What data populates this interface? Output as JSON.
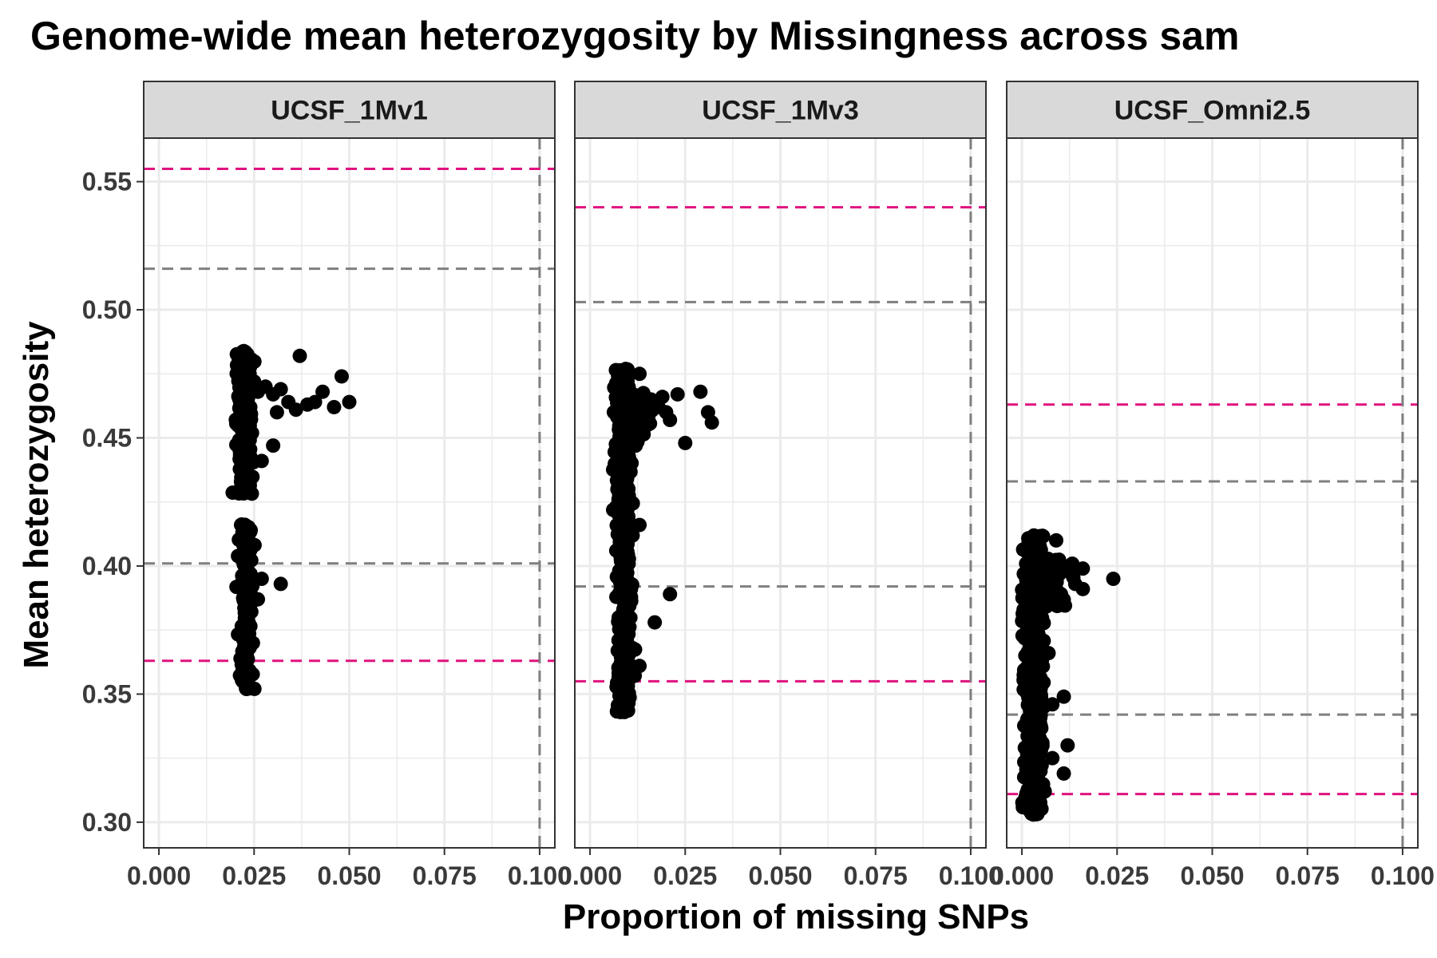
{
  "chart_data": {
    "type": "scatter",
    "title": "Genome-wide mean heterozygosity by Missingness across sam",
    "xlabel": "Proportion of missing SNPs",
    "ylabel": "Mean heterozygosity",
    "xlim": [
      -0.004,
      0.104
    ],
    "ylim": [
      0.29,
      0.567
    ],
    "x_ticks": [
      "0.000",
      "0.025",
      "0.050",
      "0.075",
      "0.100"
    ],
    "x_tick_values": [
      0,
      0.025,
      0.05,
      0.075,
      0.1
    ],
    "y_ticks": [
      "0.30",
      "0.35",
      "0.40",
      "0.45",
      "0.50",
      "0.55"
    ],
    "y_tick_values": [
      0.3,
      0.35,
      0.4,
      0.45,
      0.5,
      0.55
    ],
    "grid": true,
    "colors": {
      "points": "#000000",
      "inner_threshold": "#7f7f7f",
      "outer_threshold": "#e0127f",
      "strip_fill": "#d9d9d9",
      "grid": "#ebebeb"
    },
    "panels": [
      {
        "name": "UCSF_1Mv1",
        "missing_threshold": 0.1,
        "het_inner_thresholds": [
          0.401,
          0.516
        ],
        "het_outer_thresholds": [
          0.363,
          0.555
        ],
        "clusters": [
          {
            "x": 0.0225,
            "x_spread": 0.0015,
            "y_min": 0.428,
            "y_max": 0.484,
            "n": 260
          },
          {
            "x": 0.0228,
            "x_spread": 0.0014,
            "y_min": 0.352,
            "y_max": 0.418,
            "n": 150
          }
        ],
        "points": [
          [
            0.024,
            0.462
          ],
          [
            0.026,
            0.468
          ],
          [
            0.028,
            0.47
          ],
          [
            0.03,
            0.467
          ],
          [
            0.032,
            0.469
          ],
          [
            0.034,
            0.464
          ],
          [
            0.036,
            0.461
          ],
          [
            0.037,
            0.482
          ],
          [
            0.039,
            0.463
          ],
          [
            0.041,
            0.464
          ],
          [
            0.043,
            0.468
          ],
          [
            0.046,
            0.462
          ],
          [
            0.048,
            0.474
          ],
          [
            0.05,
            0.464
          ],
          [
            0.03,
            0.447
          ],
          [
            0.027,
            0.441
          ],
          [
            0.032,
            0.393
          ],
          [
            0.027,
            0.395
          ],
          [
            0.026,
            0.387
          ],
          [
            0.023,
            0.363
          ],
          [
            0.022,
            0.355
          ],
          [
            0.023,
            0.352
          ],
          [
            0.025,
            0.47
          ],
          [
            0.031,
            0.46
          ],
          [
            0.025,
            0.472
          ]
        ]
      },
      {
        "name": "UCSF_1Mv3",
        "missing_threshold": 0.1,
        "het_inner_thresholds": [
          0.392,
          0.503
        ],
        "het_outer_thresholds": [
          0.355,
          0.54
        ],
        "clusters": [
          {
            "x": 0.0088,
            "x_spread": 0.0016,
            "y_min": 0.343,
            "y_max": 0.477,
            "n": 520
          },
          {
            "x": 0.012,
            "x_spread": 0.003,
            "y_min": 0.448,
            "y_max": 0.468,
            "n": 80
          }
        ],
        "points": [
          [
            0.014,
            0.466
          ],
          [
            0.016,
            0.465
          ],
          [
            0.018,
            0.462
          ],
          [
            0.019,
            0.466
          ],
          [
            0.021,
            0.457
          ],
          [
            0.023,
            0.467
          ],
          [
            0.025,
            0.448
          ],
          [
            0.029,
            0.468
          ],
          [
            0.031,
            0.46
          ],
          [
            0.032,
            0.456
          ],
          [
            0.02,
            0.46
          ],
          [
            0.017,
            0.378
          ],
          [
            0.021,
            0.389
          ],
          [
            0.013,
            0.416
          ],
          [
            0.013,
            0.361
          ],
          [
            0.008,
            0.343
          ],
          [
            0.009,
            0.343
          ],
          [
            0.013,
            0.475
          ],
          [
            0.015,
            0.455
          ],
          [
            0.012,
            0.447
          ]
        ]
      },
      {
        "name": "UCSF_Omni2.5",
        "missing_threshold": 0.1,
        "het_inner_thresholds": [
          0.342,
          0.433
        ],
        "het_outer_thresholds": [
          0.311,
          0.463
        ],
        "clusters": [
          {
            "x": 0.003,
            "x_spread": 0.002,
            "y_min": 0.303,
            "y_max": 0.412,
            "n": 620
          },
          {
            "x": 0.007,
            "x_spread": 0.004,
            "y_min": 0.384,
            "y_max": 0.403,
            "n": 90
          }
        ],
        "points": [
          [
            0.024,
            0.395
          ],
          [
            0.016,
            0.399
          ],
          [
            0.016,
            0.391
          ],
          [
            0.013,
            0.397
          ],
          [
            0.011,
            0.4
          ],
          [
            0.011,
            0.349
          ],
          [
            0.012,
            0.33
          ],
          [
            0.011,
            0.319
          ],
          [
            0.008,
            0.346
          ],
          [
            0.009,
            0.41
          ],
          [
            0.007,
            0.366
          ],
          [
            0.008,
            0.325
          ],
          [
            0.004,
            0.312
          ],
          [
            0.006,
            0.312
          ],
          [
            0.003,
            0.303
          ],
          [
            0.01,
            0.385
          ],
          [
            0.014,
            0.393
          ]
        ]
      }
    ]
  }
}
